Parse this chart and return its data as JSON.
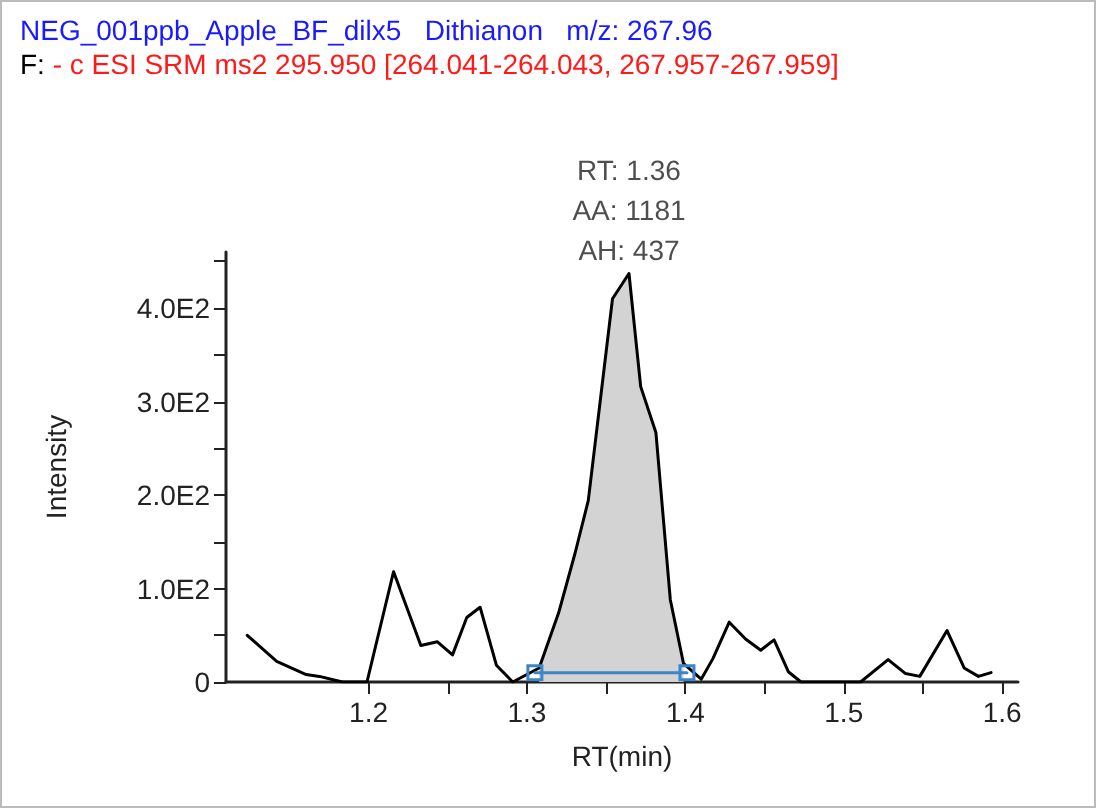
{
  "chart_data": {
    "type": "line",
    "title": "NEG_001ppb_Apple_BF_dilx5   Dithianon   m/z: 267.96",
    "subtitle": "F: - c ESI SRM ms2 295.950 [264.041-264.043, 267.957-267.959]",
    "xlabel": "RT(min)",
    "ylabel": "Intensity",
    "annotations": [
      "RT: 1.36",
      "AA: 1181",
      "AH: 437"
    ],
    "series": [
      {
        "type": "area",
        "color": "#d3d3d3",
        "x": [
          1.3077,
          1.32,
          1.3304,
          1.3387,
          1.354,
          1.3644,
          1.3718,
          1.3814,
          1.3905,
          1.3988
        ],
        "values": [
          15,
          74,
          138,
          194,
          410,
          437,
          316,
          267,
          88,
          20
        ]
      },
      {
        "color": "#000000",
        "x": [
          1.1234,
          1.142,
          1.1606,
          1.169,
          1.1835,
          1.199,
          1.2158,
          1.233,
          1.2435,
          1.253,
          1.262,
          1.2704,
          1.2807,
          1.291,
          1.3077,
          1.32,
          1.3304,
          1.3387,
          1.354,
          1.3644,
          1.3718,
          1.3814,
          1.3905,
          1.3988,
          1.41,
          1.4174,
          1.4277,
          1.438,
          1.4476,
          1.456,
          1.465,
          1.473,
          1.5106,
          1.528,
          1.539,
          1.548,
          1.5652,
          1.576,
          1.585,
          1.593
        ],
        "values": [
          50,
          22,
          8,
          6,
          0,
          0,
          118,
          39,
          43,
          29,
          69,
          80,
          18,
          0,
          15,
          74,
          138,
          194,
          410,
          437,
          316,
          267,
          88,
          20,
          3,
          25,
          64,
          46,
          34,
          45,
          11,
          0,
          0,
          24,
          9,
          6,
          55,
          15,
          6,
          10
        ]
      },
      {
        "type": "line",
        "color": "#3a86c8",
        "marker": "square",
        "x": [
          1.305,
          1.401
        ],
        "values": [
          10,
          10
        ]
      }
    ],
    "xlim": [
      1.11,
      1.61
    ],
    "xticks": [
      1.2,
      {
        "value": 1.25,
        "label": null
      },
      1.3,
      {
        "value": 1.35,
        "label": null
      },
      1.4,
      {
        "value": 1.45,
        "label": null
      },
      1.5,
      {
        "value": 1.55,
        "label": null
      },
      1.6
    ],
    "ylim": [
      0,
      460
    ],
    "yticks": [
      0,
      {
        "value": 50,
        "label": null
      },
      {
        "value": 100,
        "label": "1.0E2"
      },
      {
        "value": 150,
        "label": null
      },
      {
        "value": 200,
        "label": "2.0E2"
      },
      {
        "value": 250,
        "label": null
      },
      {
        "value": 300,
        "label": "3.0E2"
      },
      {
        "value": 350,
        "label": null
      },
      {
        "value": 400,
        "label": "4.0E2"
      },
      {
        "value": 450,
        "label": null
      }
    ],
    "grid": false,
    "marker": "none",
    "line_style": "solid"
  }
}
